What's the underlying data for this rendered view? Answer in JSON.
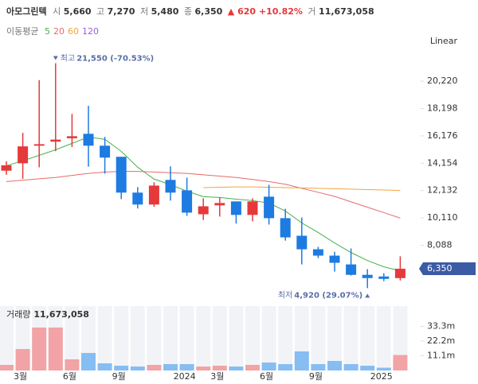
{
  "header": {
    "name": "아모그린텍",
    "open_label": "시",
    "open": "5,660",
    "high_label": "고",
    "high": "7,270",
    "low_label": "저",
    "low": "5,480",
    "close_label": "종",
    "close": "6,350",
    "change": "▲ 620 +10.82%",
    "volume_label": "거",
    "volume": "11,673,058",
    "ma_label": "이동평균",
    "scale_mode": "Linear"
  },
  "chart_data": {
    "type": "candlestick",
    "categories": [
      null,
      "3월",
      null,
      null,
      "6월",
      null,
      null,
      "9월",
      null,
      null,
      null,
      "2024",
      null,
      "3월",
      null,
      null,
      "6월",
      null,
      null,
      "9월",
      null,
      null,
      null,
      "2025",
      null
    ],
    "open": [
      13600,
      14150,
      15450,
      15750,
      16000,
      16330,
      15450,
      14630,
      11980,
      11100,
      12920,
      12150,
      10380,
      11040,
      11330,
      10330,
      11680,
      10090,
      8790,
      7790,
      7320,
      6670,
      5900,
      5780,
      5660
    ],
    "high": [
      14300,
      16400,
      20300,
      21550,
      17800,
      18400,
      16100,
      14630,
      12390,
      12740,
      13920,
      13090,
      11560,
      11620,
      11330,
      11560,
      12560,
      10790,
      10140,
      7970,
      7610,
      7850,
      6320,
      6020,
      7270
    ],
    "low": [
      13300,
      13000,
      13850,
      15050,
      15350,
      13900,
      13380,
      11500,
      10810,
      10930,
      11390,
      10260,
      9960,
      10210,
      9690,
      9860,
      9620,
      8430,
      6670,
      7140,
      6140,
      5850,
      4920,
      5430,
      5480
    ],
    "close": [
      14000,
      15400,
      15560,
      15900,
      16150,
      15450,
      14570,
      11980,
      11100,
      12500,
      11980,
      10500,
      10970,
      11210,
      10330,
      11330,
      10090,
      8670,
      7790,
      7320,
      6790,
      5900,
      5660,
      5600,
      6350
    ],
    "up_color": "#e5393b",
    "down_color": "#1d7be1",
    "moving_averages": [
      {
        "name": "5",
        "color": "#47b04b",
        "values": [
          13970,
          14330,
          14740,
          15150,
          15620,
          16100,
          15920,
          15030,
          13860,
          12980,
          12570,
          12090,
          11680,
          11620,
          11500,
          11390,
          11210,
          10620,
          9740,
          9030,
          8260,
          7550,
          6960,
          6490,
          6200
        ]
      },
      {
        "name": "20",
        "color": "#e86a6a",
        "values": [
          12800,
          12900,
          13000,
          13100,
          13250,
          13400,
          13500,
          13550,
          13550,
          13500,
          13450,
          13400,
          13300,
          13200,
          13100,
          12950,
          12800,
          12600,
          12300,
          12000,
          11700,
          11300,
          10900,
          10500,
          10100
        ]
      },
      {
        "name": "60",
        "color": "#f0a53c",
        "values": [
          null,
          null,
          null,
          null,
          null,
          null,
          null,
          null,
          null,
          null,
          null,
          null,
          12350,
          12380,
          12400,
          12400,
          12380,
          12350,
          12330,
          12300,
          12270,
          12240,
          12200,
          12170,
          12140
        ]
      },
      {
        "name": "120",
        "color": "#9b5fd8",
        "values": [
          null,
          null,
          null,
          null,
          null,
          null,
          null,
          null,
          null,
          null,
          null,
          null,
          null,
          null,
          null,
          null,
          null,
          null,
          null,
          null,
          null,
          null,
          null,
          null,
          null
        ]
      }
    ],
    "ylim": [
      4000,
      22580
    ],
    "yticks": [
      {
        "value": 8088,
        "label": "8,088"
      },
      {
        "value": 10110,
        "label": "10,110"
      },
      {
        "value": 12132,
        "label": "12,132"
      },
      {
        "value": 14154,
        "label": "14,154"
      },
      {
        "value": 16176,
        "label": "16,176"
      },
      {
        "value": 18198,
        "label": "18,198"
      },
      {
        "value": 20220,
        "label": "20,220"
      }
    ],
    "price_label": "6,350",
    "high_annotation": {
      "label": "최고",
      "text": "21,550 (-70.53%)"
    },
    "low_annotation": {
      "label": "최저",
      "text": "4,920 (29.07%)"
    },
    "volume": {
      "label": "거래량",
      "last": "11,673,058",
      "ylim": [
        0,
        40
      ],
      "yticks": [
        {
          "value": 11.1,
          "label": "11.1m"
        },
        {
          "value": 22.2,
          "label": "22.2m"
        },
        {
          "value": 33.3,
          "label": "33.3m"
        }
      ],
      "up_color": "#f2a3a5",
      "down_color": "#86bdf2",
      "values": [
        4.2,
        16.2,
        32.4,
        32.4,
        8.4,
        13.2,
        5.4,
        3.6,
        3.0,
        4.2,
        4.8,
        4.8,
        3.0,
        3.6,
        3.0,
        4.2,
        6.0,
        4.8,
        14.4,
        4.8,
        7.2,
        4.8,
        3.6,
        2.1,
        11.67
      ]
    }
  }
}
